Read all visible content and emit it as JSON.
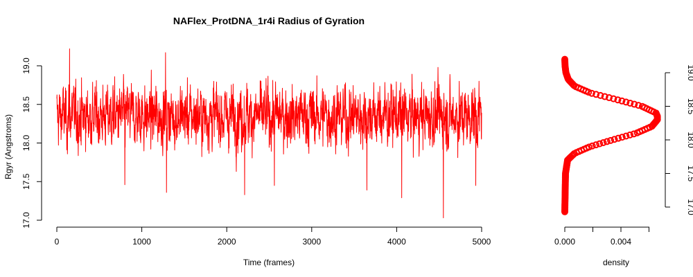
{
  "chart_data": [
    {
      "type": "line",
      "title": "NAFlex_ProtDNA_1r4i Radius of Gyration",
      "xlabel": "Time (frames)",
      "ylabel": "Rgyr (Angstroms)",
      "xlim": [
        0,
        5000
      ],
      "ylim": [
        17.0,
        19.2
      ],
      "xticks": [
        "0",
        "1000",
        "2000",
        "3000",
        "4000",
        "5000"
      ],
      "yticks": [
        "17.0",
        "17.5",
        "18.0",
        "18.5",
        "19.0"
      ],
      "grid": false,
      "color": "#ff0000",
      "series": [
        {
          "approx_n_frames": 5000,
          "mean": 18.35,
          "typical_range": [
            17.9,
            18.8
          ],
          "min": 17.03,
          "max": 19.22,
          "notable_points": [
            {
              "x": 150,
              "y": 19.22
            },
            {
              "x": 1280,
              "y": 19.17
            },
            {
              "x": 800,
              "y": 17.46
            },
            {
              "x": 1290,
              "y": 17.36
            },
            {
              "x": 2210,
              "y": 17.33
            },
            {
              "x": 2560,
              "y": 17.45
            },
            {
              "x": 3650,
              "y": 17.39
            },
            {
              "x": 4060,
              "y": 17.29
            },
            {
              "x": 4550,
              "y": 17.03
            },
            {
              "x": 4930,
              "y": 17.45
            }
          ]
        }
      ]
    },
    {
      "type": "area",
      "xlabel": "density",
      "ylabel": "",
      "ylim": [
        17.0,
        19.2
      ],
      "xticks": [
        "0.000",
        "0.004"
      ],
      "xtick_values": [
        0.0,
        0.004
      ],
      "yticks": [
        "17.0",
        "17.5",
        "18.0",
        "18.5",
        "19.0"
      ],
      "y_axis_side": "right",
      "color": "#ff0000",
      "series": [
        {
          "y": [
            16.93,
            17.5,
            17.7,
            17.8,
            17.9,
            18.0,
            18.1,
            18.2,
            18.3,
            18.35,
            18.4,
            18.5,
            18.6,
            18.7,
            18.8,
            18.9,
            19.0,
            19.1,
            19.2
          ],
          "density": [
            0.0,
            5e-05,
            0.0002,
            0.0007,
            0.0018,
            0.0034,
            0.0051,
            0.0062,
            0.0066,
            0.0066,
            0.0065,
            0.0055,
            0.0037,
            0.0018,
            0.0007,
            0.00025,
            8e-05,
            2e-05,
            0.0
          ]
        }
      ]
    }
  ]
}
